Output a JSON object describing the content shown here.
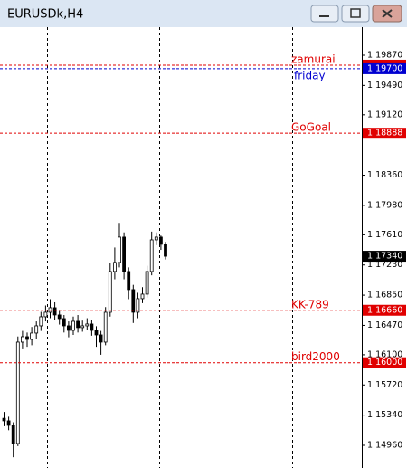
{
  "window_title": "EURUSDk,H4",
  "chart_data": {
    "type": "candlestick",
    "open": [
      1.153,
      1.15268,
      1.15211,
      1.14983,
      1.16259,
      1.16327,
      1.16293,
      1.16373,
      1.16464,
      1.16578,
      1.16635,
      1.16692,
      1.16601,
      1.16555,
      1.16464,
      1.16407,
      1.16521,
      1.16442,
      1.16464,
      1.16487,
      1.16407,
      1.1635,
      1.16259,
      1.16635,
      1.17148,
      1.17262,
      1.17581,
      1.17148,
      1.1692,
      1.16635,
      1.16806,
      1.16863,
      1.17148,
      1.17546,
      1.17581,
      1.1749
    ],
    "high": [
      1.1538,
      1.1532,
      1.1525,
      1.1633,
      1.164,
      1.1638,
      1.1645,
      1.1652,
      1.1664,
      1.1672,
      1.168,
      1.1676,
      1.1665,
      1.166,
      1.1652,
      1.1658,
      1.166,
      1.1653,
      1.1656,
      1.1654,
      1.1646,
      1.164,
      1.167,
      1.1725,
      1.1745,
      1.1776,
      1.1764,
      1.172,
      1.1698,
      1.1688,
      1.1695,
      1.1722,
      1.1765,
      1.1764,
      1.176,
      1.1752
    ],
    "low": [
      1.152,
      1.1515,
      1.1481,
      1.1495,
      1.1618,
      1.162,
      1.1622,
      1.163,
      1.164,
      1.1652,
      1.1656,
      1.1654,
      1.1648,
      1.1638,
      1.1632,
      1.1635,
      1.1638,
      1.1639,
      1.1641,
      1.1634,
      1.162,
      1.161,
      1.1622,
      1.1658,
      1.1705,
      1.172,
      1.1705,
      1.168,
      1.165,
      1.1656,
      1.1675,
      1.1682,
      1.171,
      1.1748,
      1.1742,
      1.173
    ],
    "close": [
      1.15268,
      1.15211,
      1.14983,
      1.16259,
      1.16327,
      1.16293,
      1.16373,
      1.16464,
      1.16578,
      1.16635,
      1.16692,
      1.16601,
      1.16555,
      1.16464,
      1.16407,
      1.16521,
      1.16442,
      1.16464,
      1.16487,
      1.16407,
      1.1635,
      1.16259,
      1.16635,
      1.17148,
      1.17262,
      1.17581,
      1.17148,
      1.1692,
      1.16635,
      1.16806,
      1.16863,
      1.17148,
      1.17546,
      1.17581,
      1.1749,
      1.1734
    ],
    "ylim": [
      1.14675,
      1.20223
    ],
    "yticks": [
      {
        "value": 1.1987,
        "label": "1.19870"
      },
      {
        "value": 1.1949,
        "label": "1.19490"
      },
      {
        "value": 1.1912,
        "label": "1.19120"
      },
      {
        "value": 1.1836,
        "label": "1.18360"
      },
      {
        "value": 1.1798,
        "label": "1.17980"
      },
      {
        "value": 1.1761,
        "label": "1.17610"
      },
      {
        "value": 1.1723,
        "label": "1.17230"
      },
      {
        "value": 1.1685,
        "label": "1.16850"
      },
      {
        "value": 1.1647,
        "label": "1.16470"
      },
      {
        "value": 1.161,
        "label": "1.16100"
      },
      {
        "value": 1.1572,
        "label": "1.15720"
      },
      {
        "value": 1.1534,
        "label": "1.15340"
      },
      {
        "value": 1.1496,
        "label": "1.14960"
      }
    ],
    "levels": [
      {
        "name": "zamurai",
        "price": 1.19745,
        "color": "#e00000"
      },
      {
        "name": "friday",
        "price": 1.197,
        "price_label": "1.19700",
        "color": "#0000d0"
      },
      {
        "name": "GoGoal",
        "price": 1.18888,
        "price_label": "1.18888",
        "color": "#e00000"
      },
      {
        "name": "KK-789",
        "price": 1.1666,
        "price_label": "1.16660",
        "color": "#e00000"
      },
      {
        "name": "bird2000",
        "price": 1.16,
        "price_label": "1.16000",
        "color": "#e00000"
      }
    ],
    "current_price": {
      "value": 1.1734,
      "label": "1.17340"
    }
  }
}
